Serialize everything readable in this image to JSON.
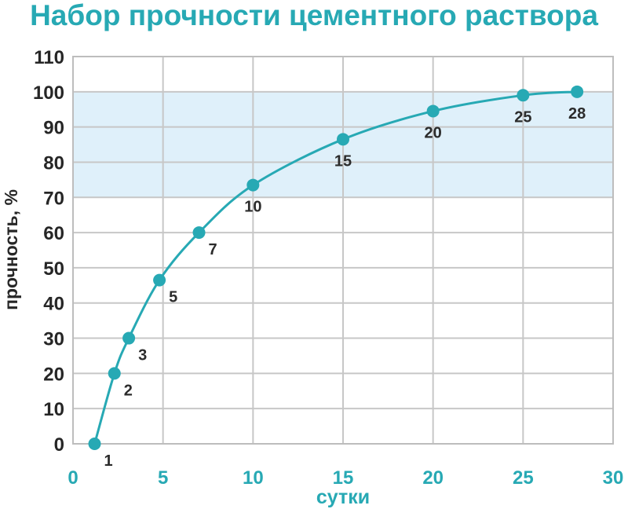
{
  "chart_data": {
    "type": "line",
    "title": "Набор прочности цементного раствора",
    "xlabel": "сутки",
    "ylabel": "прочность, %",
    "xlim": [
      0,
      30
    ],
    "ylim": [
      0,
      110
    ],
    "xticks": [
      "0",
      "5",
      "10",
      "15",
      "20",
      "25",
      "30"
    ],
    "yticks": [
      "0",
      "10",
      "20",
      "30",
      "40",
      "50",
      "60",
      "70",
      "80",
      "90",
      "100",
      "110"
    ],
    "grid": true,
    "highlight_band": [
      70,
      100
    ],
    "series": [
      {
        "points": [
          {
            "x": 1.2,
            "y": 0,
            "label": "1"
          },
          {
            "x": 2.3,
            "y": 20,
            "label": "2"
          },
          {
            "x": 3.1,
            "y": 30,
            "label": "3"
          },
          {
            "x": 4.8,
            "y": 46.5,
            "label": "5"
          },
          {
            "x": 7,
            "y": 60,
            "label": "7"
          },
          {
            "x": 10,
            "y": 73.5,
            "label": "10"
          },
          {
            "x": 15,
            "y": 86.5,
            "label": "15"
          },
          {
            "x": 20,
            "y": 94.5,
            "label": "20"
          },
          {
            "x": 25,
            "y": 99,
            "label": "25"
          },
          {
            "x": 28,
            "y": 100,
            "label": "28"
          }
        ]
      }
    ],
    "colors": {
      "line": "#27a9b4",
      "band": "#dff0fa",
      "grid": "#c7c7c7",
      "title": "#27a9b4",
      "x_ticks": "#27a9b4",
      "y_ticks": "#262626"
    }
  }
}
